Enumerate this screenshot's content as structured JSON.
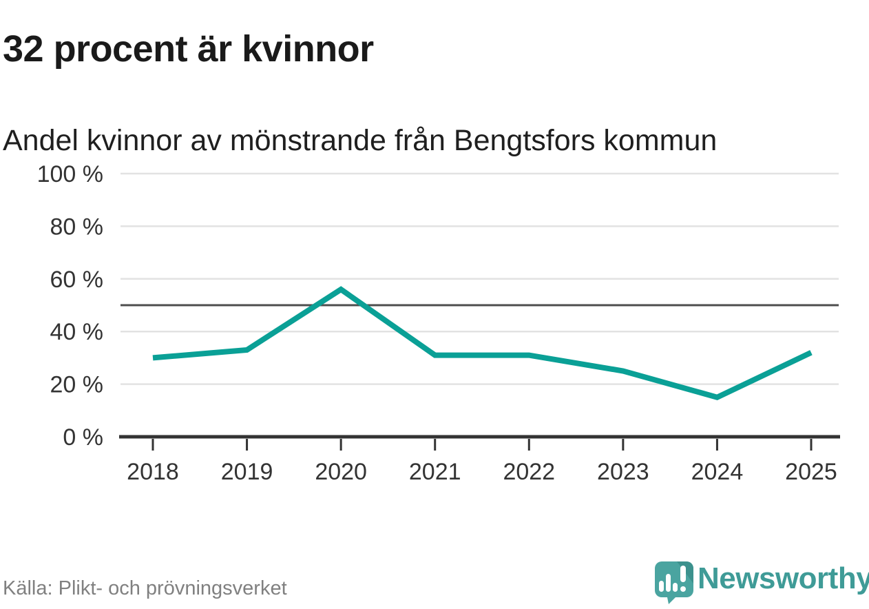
{
  "header": {
    "title": "32 procent är kvinnor",
    "subtitle": "Andel kvinnor av mönstrande från Bengtsfors kommun"
  },
  "chart_data": {
    "type": "line",
    "title": "32 procent är kvinnor",
    "subtitle": "Andel kvinnor av mönstrande från Bengtsfors kommun",
    "categories": [
      "2018",
      "2019",
      "2020",
      "2021",
      "2022",
      "2023",
      "2024",
      "2025"
    ],
    "values": [
      30,
      33,
      56,
      31,
      31,
      25,
      15,
      32
    ],
    "xlabel": "",
    "ylabel": "",
    "ylim": [
      0,
      100
    ],
    "yticks": [
      0,
      20,
      40,
      60,
      80,
      100
    ],
    "ytick_suffix": " %",
    "reference_line": {
      "value": 50
    },
    "grid": "horizontal",
    "legend": "none",
    "line_color": "#0aa096"
  },
  "footer": {
    "source": "Källa: Plikt- och prövningsverket",
    "brand": "Newsworthy"
  },
  "colors": {
    "line": "#0aa096",
    "gridline": "#e2e2e2",
    "reference_line": "#4d4d4d",
    "axis": "#333333",
    "tick_label": "#333333",
    "title_text": "#1a1a1a",
    "source_text": "#808080",
    "brand_teal": "#3f9b97",
    "logo_bubble": "#4aa4a0",
    "logo_bubble_shade": "#3c918d"
  }
}
